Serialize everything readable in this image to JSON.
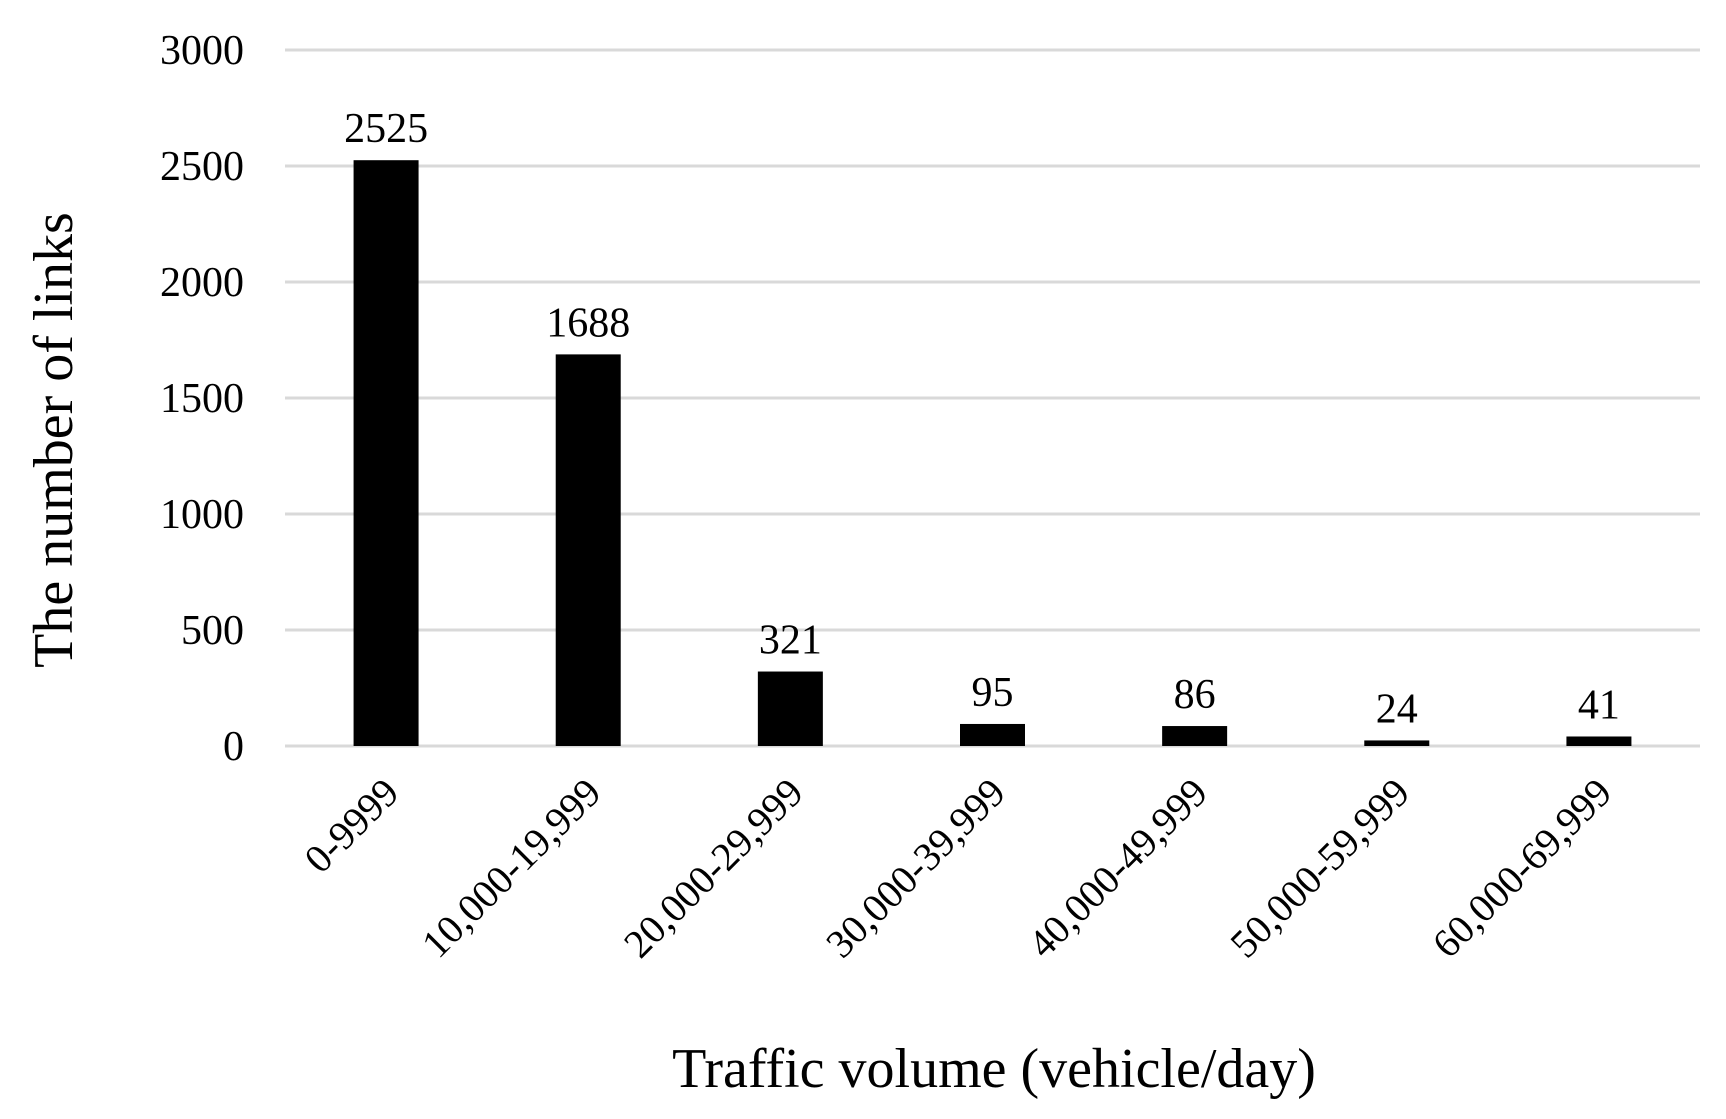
{
  "chart_data": {
    "type": "bar",
    "xlabel": "Traffic volume (vehicle/day)",
    "ylabel": "The number of links",
    "categories": [
      "0-9999",
      "10,000-19,999",
      "20,000-29,999",
      "30,000-39,999",
      "40,000-49,999",
      "50,000-59,999",
      "60,000-69,999"
    ],
    "values": [
      2525,
      1688,
      321,
      95,
      86,
      24,
      41
    ],
    "data_labels": [
      "2525",
      "1688",
      "321",
      "95",
      "86",
      "24",
      "41"
    ],
    "ylim": [
      0,
      3000
    ],
    "yticks": [
      0,
      500,
      1000,
      1500,
      2000,
      2500,
      3000
    ],
    "ytick_labels": [
      "0",
      "500",
      "1000",
      "1500",
      "2000",
      "2500",
      "3000"
    ],
    "grid": true,
    "legend": false,
    "colors": {
      "bar": "#000000",
      "grid": "#d9d9d9",
      "background": "#ffffff"
    }
  }
}
